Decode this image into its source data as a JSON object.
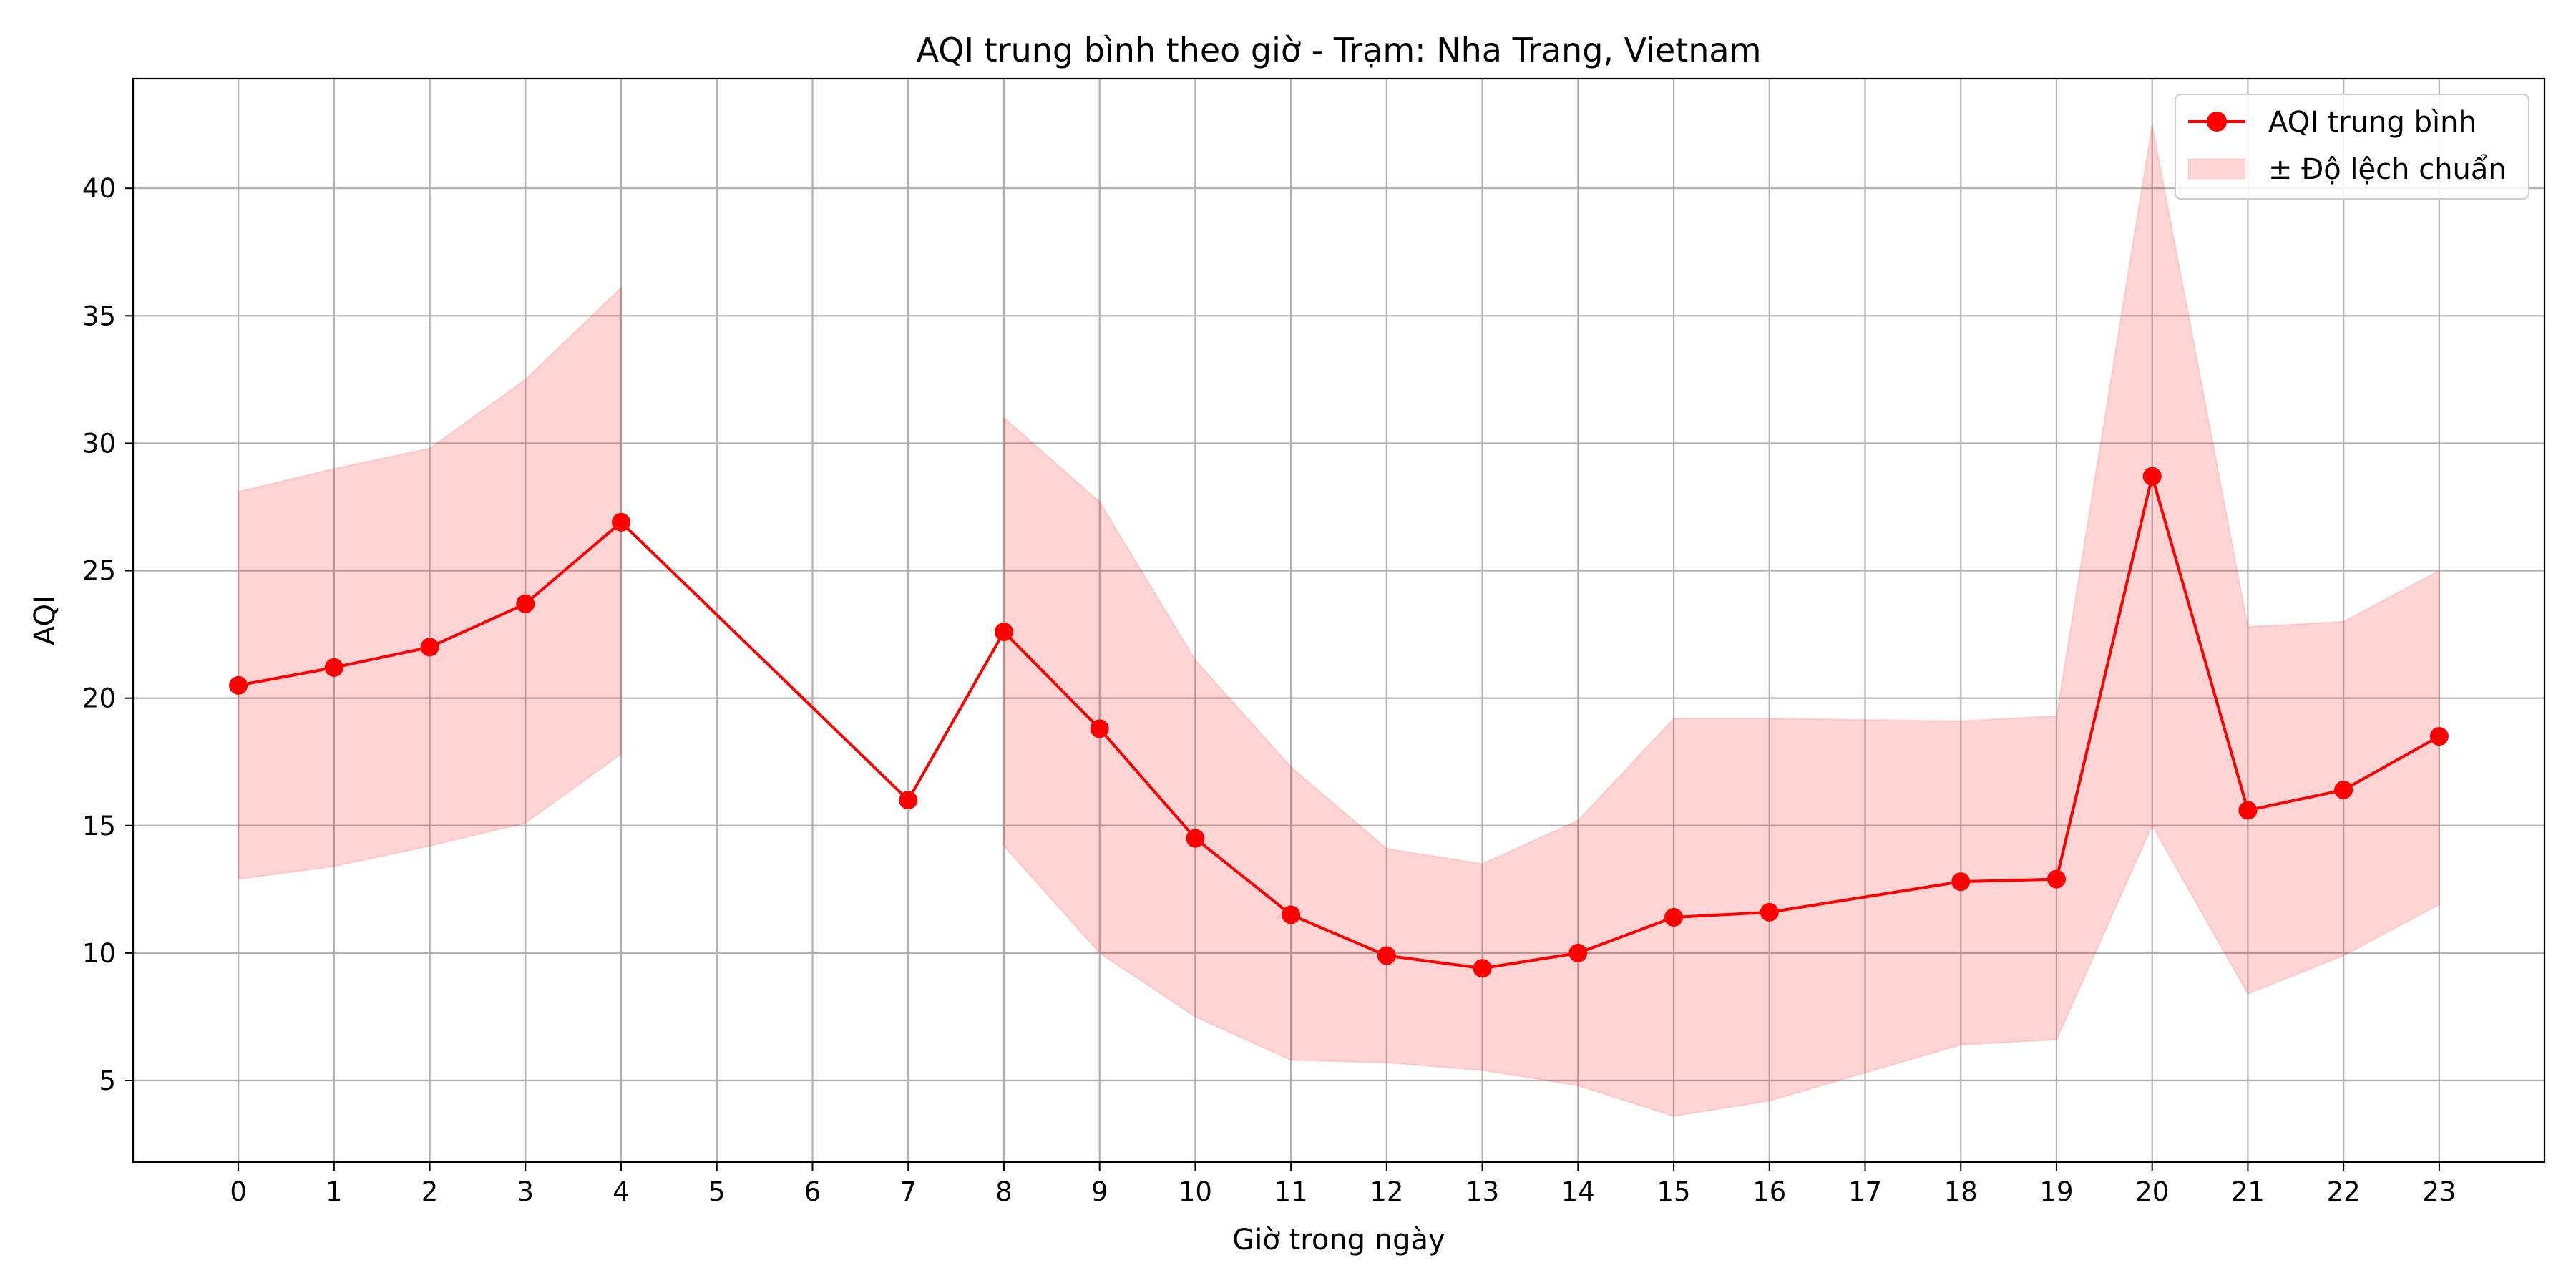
{
  "chart_data": {
    "type": "line",
    "title": "AQI trung bình theo giờ - Trạm: Nha Trang, Vietnam",
    "xlabel": "Giờ trong ngày",
    "ylabel": "AQI",
    "xlim": [
      -1.1,
      24.1
    ],
    "ylim": [
      1.8,
      44.3
    ],
    "x_ticks": [
      0,
      1,
      2,
      3,
      4,
      5,
      6,
      7,
      8,
      9,
      10,
      11,
      12,
      13,
      14,
      15,
      16,
      17,
      18,
      19,
      20,
      21,
      22,
      23
    ],
    "y_ticks": [
      5,
      10,
      15,
      20,
      25,
      30,
      35,
      40
    ],
    "grid": true,
    "legend_position": "top-right",
    "series": [
      {
        "name": "AQI trung bình",
        "kind": "line-markers",
        "color": "#ff0000",
        "x": [
          0,
          1,
          2,
          3,
          4,
          7,
          8,
          9,
          10,
          11,
          12,
          13,
          14,
          15,
          16,
          18,
          19,
          20,
          21,
          22,
          23
        ],
        "values": [
          20.5,
          21.2,
          22.0,
          23.7,
          26.9,
          16.0,
          22.6,
          18.8,
          14.5,
          11.5,
          9.9,
          9.4,
          10.0,
          11.4,
          11.6,
          12.8,
          12.9,
          28.7,
          15.6,
          16.4,
          18.5
        ]
      },
      {
        "name": "± Độ lệch chuẩn",
        "kind": "band",
        "color": "#ffcccc",
        "segments": [
          {
            "x": [
              0,
              1,
              2,
              3,
              4
            ],
            "lower": [
              12.9,
              13.4,
              14.2,
              15.1,
              17.8
            ],
            "upper": [
              28.1,
              29.0,
              29.8,
              32.5,
              36.1
            ]
          },
          {
            "x": [
              8,
              9,
              10,
              11,
              12,
              13,
              14,
              15,
              16,
              18,
              19,
              20,
              21,
              22,
              23
            ],
            "lower": [
              14.2,
              10.0,
              7.5,
              5.8,
              5.7,
              5.4,
              4.8,
              3.6,
              4.2,
              6.4,
              6.6,
              15.0,
              8.4,
              9.9,
              11.9
            ],
            "upper": [
              31.0,
              27.7,
              21.5,
              17.3,
              14.1,
              13.5,
              15.2,
              19.2,
              19.2,
              19.1,
              19.3,
              42.5,
              22.8,
              23.0,
              25.0
            ]
          }
        ]
      }
    ]
  }
}
